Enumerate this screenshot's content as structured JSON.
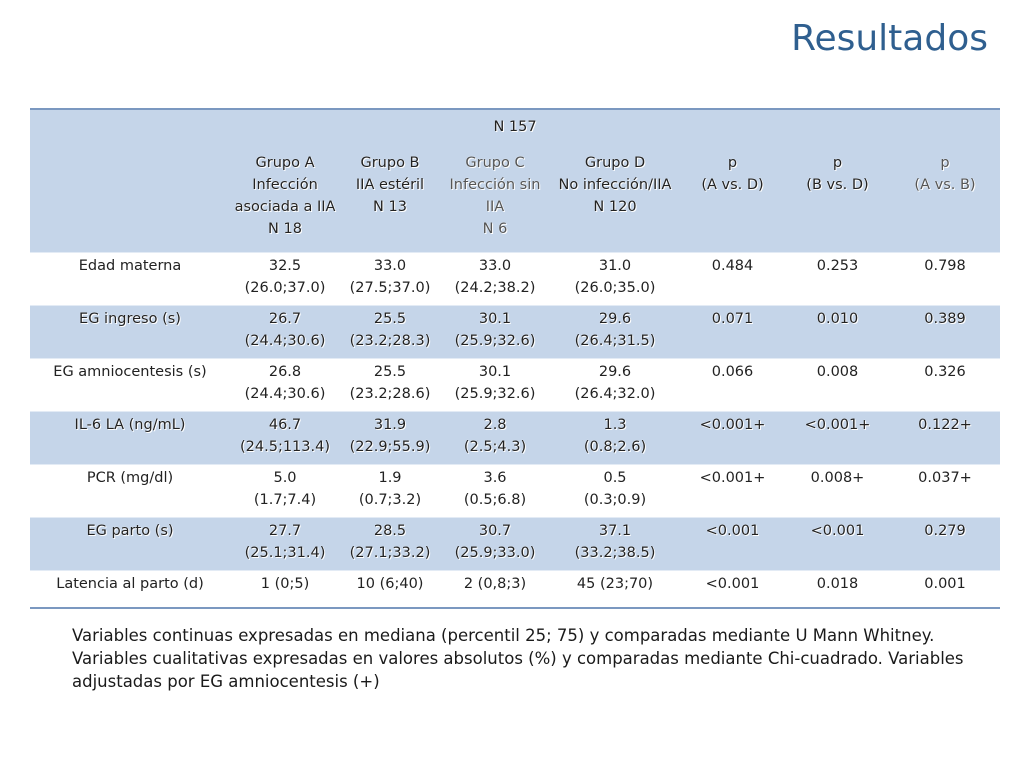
{
  "title": "Resultados",
  "table": {
    "n_total": "N 157",
    "headers": [
      "",
      "Grupo A\nInfección asociada a IIA\nN 18",
      "Grupo B\nIIA estéril\nN 13",
      "Grupo C\nInfección sin IIA\nN 6",
      "Grupo D\nNo infección/IIA\nN 120",
      "p\n(A vs. D)",
      "p\n(B vs. D)",
      "p\n(A vs. B)"
    ],
    "rows": [
      [
        "Edad materna",
        "32.5\n(26.0;37.0)",
        "33.0\n(27.5;37.0)",
        "33.0\n(24.2;38.2)",
        "31.0\n(26.0;35.0)",
        "0.484",
        "0.253",
        "0.798"
      ],
      [
        "EG ingreso (s)",
        "26.7\n(24.4;30.6)",
        "25.5\n(23.2;28.3)",
        "30.1\n(25.9;32.6)",
        "29.6\n(26.4;31.5)",
        "0.071",
        "0.010",
        "0.389"
      ],
      [
        "EG amniocentesis (s)",
        "26.8\n(24.4;30.6)",
        "25.5\n(23.2;28.6)",
        "30.1\n(25.9;32.6)",
        "29.6\n(26.4;32.0)",
        "0.066",
        "0.008",
        "0.326"
      ],
      [
        "IL-6 LA (ng/mL)",
        "46.7\n(24.5;113.4)",
        "31.9\n(22.9;55.9)",
        "2.8\n(2.5;4.3)",
        "1.3\n(0.8;2.6)",
        "<0.001+",
        "<0.001+",
        "0.122+"
      ],
      [
        "PCR (mg/dl)",
        "5.0\n(1.7;7.4)",
        "1.9\n(0.7;3.2)",
        "3.6\n(0.5;6.8)",
        "0.5\n(0.3;0.9)",
        "<0.001+",
        "0.008+",
        "0.037+"
      ],
      [
        "EG parto (s)",
        "27.7\n(25.1;31.4)",
        "28.5\n(27.1;33.2)",
        "30.7\n(25.9;33.0)",
        "37.1\n(33.2;38.5)",
        "<0.001",
        "<0.001",
        "0.279"
      ],
      [
        "Latencia al parto (d)",
        "1 (0;5)",
        "10 (6;40)",
        "2 (0,8;3)",
        "45 (23;70)",
        "<0.001",
        "0.018",
        "0.001"
      ]
    ]
  },
  "notes": "Variables continuas expresadas en mediana (percentil 25; 75) y comparadas mediante U Mann Whitney. Variables cualitativas expresadas en valores absolutos (%) y comparadas mediante Chi-cuadrado. Variables adjustadas por EG amniocentesis (+)"
}
